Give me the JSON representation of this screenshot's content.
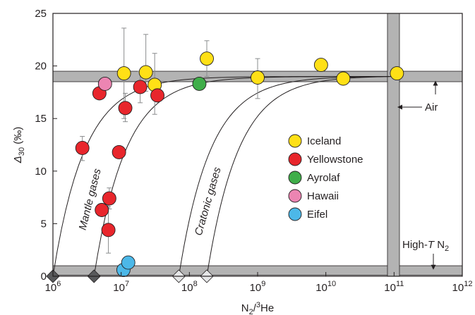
{
  "chart_data": {
    "type": "scatter",
    "xscale": "log",
    "xlim": [
      1000000,
      1000000000000
    ],
    "ylim": [
      0,
      25
    ],
    "x_ticks": [
      {
        "value": 1000000,
        "base": "10",
        "exp": "6"
      },
      {
        "value": 10000000,
        "base": "10",
        "exp": "7"
      },
      {
        "value": 100000000,
        "base": "10",
        "exp": "8"
      },
      {
        "value": 1000000000,
        "base": "10",
        "exp": "9"
      },
      {
        "value": 10000000000,
        "base": "10",
        "exp": "10"
      },
      {
        "value": 100000000000,
        "base": "10",
        "exp": "11"
      },
      {
        "value": 1000000000000,
        "base": "10",
        "exp": "12"
      }
    ],
    "y_ticks": [
      0,
      5,
      10,
      15,
      20,
      25
    ],
    "xlabel": {
      "main": "N",
      "sub": "2",
      "slash": "/",
      "sup": "3",
      "tail": "He"
    },
    "ylabel": {
      "main": "Δ",
      "sub": "30",
      "unit": " (‰)"
    },
    "colors": {
      "Iceland": "#ffe016",
      "Yellowstone": "#e8262c",
      "Ayrolaf": "#3fae49",
      "Hawaii": "#ec85b2",
      "Eifel": "#4cb8e8",
      "band": "#b3b3b3",
      "diamond_dark": "#58595b",
      "diamond_light": "#e6e7e8"
    },
    "legend": [
      "Iceland",
      "Yellowstone",
      "Ayrolaf",
      "Hawaii",
      "Eifel"
    ],
    "legend_position": "right-center",
    "series": [
      {
        "name": "Iceland",
        "points": [
          {
            "x": 11000000,
            "y": 19.3,
            "err": [
              15.0,
              23.6
            ]
          },
          {
            "x": 23000000,
            "y": 19.4,
            "err": [
              17.6,
              23.0
            ]
          },
          {
            "x": 31000000,
            "y": 18.2,
            "err": [
              15.4,
              21.2
            ]
          },
          {
            "x": 180000000,
            "y": 20.7,
            "err": [
              19.0,
              22.4
            ]
          },
          {
            "x": 1000000000,
            "y": 18.9,
            "err": [
              16.9,
              20.7
            ]
          },
          {
            "x": 8500000000,
            "y": 20.1
          },
          {
            "x": 18000000000,
            "y": 18.8
          },
          {
            "x": 110000000000,
            "y": 19.3
          }
        ]
      },
      {
        "name": "Yellowstone",
        "points": [
          {
            "x": 2700000,
            "y": 12.2,
            "err": [
              11.0,
              13.3
            ]
          },
          {
            "x": 4800000,
            "y": 17.4
          },
          {
            "x": 5200000,
            "y": 6.3
          },
          {
            "x": 6500000,
            "y": 4.4,
            "err": [
              2.2,
              6.6
            ]
          },
          {
            "x": 6700000,
            "y": 7.4,
            "err": [
              6.4,
              8.4
            ]
          },
          {
            "x": 9300000,
            "y": 11.8
          },
          {
            "x": 11500000,
            "y": 16.0,
            "err": [
              14.7,
              17.4
            ]
          },
          {
            "x": 19000000,
            "y": 18.0,
            "err": [
              16.5,
              19.5
            ]
          },
          {
            "x": 34000000,
            "y": 17.2
          }
        ]
      },
      {
        "name": "Ayrolaf",
        "points": [
          {
            "x": 140000000,
            "y": 18.3
          }
        ]
      },
      {
        "name": "Hawaii",
        "points": [
          {
            "x": 5800000,
            "y": 18.3
          }
        ]
      },
      {
        "name": "Eifel",
        "points": [
          {
            "x": 10800000,
            "y": 0.6
          },
          {
            "x": 12700000,
            "y": 1.3
          }
        ]
      }
    ],
    "bands": [
      {
        "orientation": "horizontal",
        "from": 18.5,
        "to": 19.5,
        "label": "Air"
      },
      {
        "orientation": "horizontal",
        "from": 0.1,
        "to": 1.0,
        "label": "High-T N2"
      },
      {
        "orientation": "vertical",
        "from": 80000000000,
        "to": 120000000000
      }
    ],
    "band_labels": {
      "air": "Air",
      "high_t": {
        "prefix": "High-",
        "italic": "T",
        "main": " N",
        "sub": "2"
      }
    },
    "mixing_curves": [
      {
        "x0": 1000000,
        "group": "mantle"
      },
      {
        "x0": 4000000,
        "group": "mantle"
      },
      {
        "x0": 70000000,
        "group": "cratonic"
      },
      {
        "x0": 180000000,
        "group": "cratonic"
      }
    ],
    "curve_end": {
      "x": 100000000000,
      "y": 19.0
    },
    "endmembers": [
      {
        "x": 1000000,
        "y": 0,
        "shade": "dark"
      },
      {
        "x": 4000000,
        "y": 0,
        "shade": "dark"
      },
      {
        "x": 70000000,
        "y": 0,
        "shade": "light"
      },
      {
        "x": 180000000,
        "y": 0,
        "shade": "light"
      }
    ],
    "curve_labels": {
      "mantle": "Mantle gases",
      "cratonic": "Cratonic gases"
    },
    "grid": false
  }
}
